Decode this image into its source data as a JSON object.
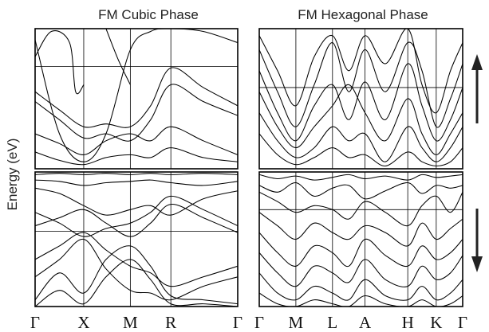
{
  "chart_data": [
    {
      "type": "line",
      "title": "FM Cubic Phase",
      "ylabel": "Energy (eV)",
      "kpath": [
        "Γ",
        "X",
        "M",
        "R",
        "Γ"
      ],
      "kpos": [
        0,
        0.24,
        0.47,
        0.67,
        1.0
      ],
      "panels": [
        {
          "name": "upper",
          "ylim": [
            0,
            1
          ],
          "hline": 0.73,
          "series": [
            {
              "x": [
                0,
                0.12,
                0.24,
                0.35,
                0.47,
                0.57,
                0.67,
                0.83,
                1.0
              ],
              "values": [
                0.92,
                0.25,
                0.05,
                0.25,
                0.85,
                0.98,
                1.0,
                0.98,
                0.9
              ]
            },
            {
              "x": [
                0,
                0.08,
                0.17,
                0.2,
                0.24
              ],
              "values": [
                0.8,
                0.98,
                0.9,
                0.55,
                0.6
              ]
            },
            {
              "x": [
                0.35,
                0.41,
                0.47
              ],
              "values": [
                1.0,
                0.78,
                0.6
              ]
            },
            {
              "x": [
                0,
                0.12,
                0.24,
                0.35,
                0.47,
                0.57,
                0.67,
                0.83,
                1.0
              ],
              "values": [
                0.55,
                0.42,
                0.3,
                0.32,
                0.3,
                0.45,
                0.72,
                0.58,
                0.45
              ]
            },
            {
              "x": [
                0,
                0.12,
                0.24,
                0.35,
                0.47,
                0.57,
                0.67,
                0.83,
                1.0
              ],
              "values": [
                0.48,
                0.35,
                0.22,
                0.25,
                0.2,
                0.35,
                0.6,
                0.48,
                0.38
              ]
            },
            {
              "x": [
                0,
                0.12,
                0.24,
                0.35,
                0.47,
                0.57,
                0.67,
                0.83,
                1.0
              ],
              "values": [
                0.25,
                0.18,
                0.1,
                0.2,
                0.25,
                0.2,
                0.3,
                0.2,
                0.1
              ]
            },
            {
              "x": [
                0,
                0.12,
                0.24,
                0.35,
                0.47,
                0.57,
                0.67,
                0.83,
                1.0
              ],
              "values": [
                0.12,
                0.06,
                0.03,
                0.08,
                0.1,
                0.08,
                0.15,
                0.08,
                0.05
              ]
            }
          ]
        },
        {
          "name": "lower",
          "ylim": [
            0,
            1
          ],
          "hline": 0.56,
          "series": [
            {
              "x": [
                0,
                0.12,
                0.24,
                0.35,
                0.47,
                0.57,
                0.67,
                0.83,
                1.0
              ],
              "values": [
                0.98,
                0.99,
                0.98,
                0.99,
                0.98,
                0.99,
                0.98,
                0.99,
                0.98
              ]
            },
            {
              "x": [
                0,
                0.12,
                0.24,
                0.35,
                0.47,
                0.57,
                0.67,
                0.83,
                1.0
              ],
              "values": [
                0.94,
                0.93,
                0.9,
                0.92,
                0.93,
                0.94,
                0.92,
                0.9,
                0.93
              ]
            },
            {
              "x": [
                0,
                0.12,
                0.24,
                0.35,
                0.47,
                0.57,
                0.67,
                0.83,
                1.0
              ],
              "values": [
                0.88,
                0.84,
                0.75,
                0.68,
                0.72,
                0.75,
                0.68,
                0.8,
                0.86
              ]
            },
            {
              "x": [
                0,
                0.12,
                0.24,
                0.35,
                0.47,
                0.57,
                0.67,
                0.83,
                1.0
              ],
              "values": [
                0.7,
                0.62,
                0.52,
                0.58,
                0.62,
                0.7,
                0.82,
                0.72,
                0.6
              ]
            },
            {
              "x": [
                0,
                0.12,
                0.24,
                0.35,
                0.47,
                0.57,
                0.67,
                0.83,
                1.0
              ],
              "values": [
                0.6,
                0.66,
                0.72,
                0.62,
                0.52,
                0.62,
                0.76,
                0.66,
                0.55
              ]
            },
            {
              "x": [
                0,
                0.12,
                0.24,
                0.35,
                0.47,
                0.57,
                0.67,
                0.83,
                1.0
              ],
              "values": [
                0.35,
                0.45,
                0.55,
                0.42,
                0.3,
                0.25,
                0.15,
                0.22,
                0.3
              ]
            },
            {
              "x": [
                0,
                0.12,
                0.24,
                0.35,
                0.47,
                0.57,
                0.67,
                0.83,
                1.0
              ],
              "values": [
                0.22,
                0.35,
                0.5,
                0.28,
                0.12,
                0.1,
                0.05,
                0.15,
                0.22
              ]
            },
            {
              "x": [
                0,
                0.12,
                0.24,
                0.35,
                0.47,
                0.57,
                0.67,
                0.83,
                1.0
              ],
              "values": [
                0.05,
                0.25,
                0.1,
                0.35,
                0.45,
                0.3,
                0.08,
                0.05,
                0.02
              ]
            },
            {
              "x": [
                0,
                0.12,
                0.24,
                0.35,
                0.47,
                0.57,
                0.67,
                0.83,
                1.0
              ],
              "values": [
                0.0,
                0.12,
                0.02,
                0.22,
                0.35,
                0.2,
                0.02,
                0.02,
                0.0
              ]
            }
          ]
        }
      ]
    },
    {
      "type": "line",
      "title": "FM Hexagonal Phase",
      "kpath": [
        "Γ",
        "M",
        "L",
        "A",
        "H",
        "K",
        "Γ"
      ],
      "kpos": [
        0,
        0.18,
        0.36,
        0.52,
        0.73,
        0.87,
        1.0
      ],
      "panels": [
        {
          "name": "upper",
          "ylim": [
            0,
            1
          ],
          "hline": 0.58,
          "series": [
            {
              "x": [
                0,
                0.09,
                0.18,
                0.27,
                0.36,
                0.44,
                0.52,
                0.62,
                0.73,
                0.8,
                0.87,
                0.94,
                1.0
              ],
              "values": [
                0.95,
                0.7,
                0.45,
                0.8,
                0.95,
                0.7,
                0.95,
                0.75,
                1.0,
                0.6,
                0.4,
                0.7,
                0.9
              ]
            },
            {
              "x": [
                0,
                0.09,
                0.18,
                0.27,
                0.36,
                0.44,
                0.52,
                0.62,
                0.73,
                0.8,
                0.87,
                0.94,
                1.0
              ],
              "values": [
                0.85,
                0.55,
                0.3,
                0.6,
                0.9,
                0.55,
                0.85,
                0.55,
                0.9,
                0.7,
                0.3,
                0.5,
                0.75
              ]
            },
            {
              "x": [
                0,
                0.09,
                0.18,
                0.27,
                0.36,
                0.44,
                0.52,
                0.62,
                0.73,
                0.8,
                0.87,
                0.94,
                1.0
              ],
              "values": [
                0.7,
                0.4,
                0.2,
                0.45,
                0.6,
                0.35,
                0.62,
                0.35,
                0.75,
                0.45,
                0.2,
                0.35,
                0.58
              ]
            },
            {
              "x": [
                0,
                0.09,
                0.18,
                0.27,
                0.36,
                0.44,
                0.52,
                0.62,
                0.73,
                0.8,
                0.87,
                0.94,
                1.0
              ],
              "values": [
                0.55,
                0.3,
                0.15,
                0.3,
                0.45,
                0.6,
                0.4,
                0.2,
                0.5,
                0.25,
                0.1,
                0.25,
                0.4
              ]
            },
            {
              "x": [
                0,
                0.09,
                0.18,
                0.27,
                0.36,
                0.44,
                0.52,
                0.62,
                0.73,
                0.8,
                0.87,
                0.94,
                1.0
              ],
              "values": [
                0.4,
                0.2,
                0.08,
                0.15,
                0.3,
                0.2,
                0.25,
                0.05,
                0.3,
                0.15,
                0.05,
                0.15,
                0.3
              ]
            },
            {
              "x": [
                0,
                0.09,
                0.18,
                0.27,
                0.36,
                0.44,
                0.52,
                0.62,
                0.73,
                0.8,
                0.87,
                0.94,
                1.0
              ],
              "values": [
                0.25,
                0.1,
                0.03,
                0.08,
                0.15,
                0.08,
                0.1,
                0.02,
                0.12,
                0.05,
                0.02,
                0.05,
                0.15
              ]
            }
          ]
        },
        {
          "name": "lower",
          "ylim": [
            0,
            1
          ],
          "hline": 0.72,
          "series": [
            {
              "x": [
                0,
                0.09,
                0.18,
                0.27,
                0.36,
                0.44,
                0.52,
                0.62,
                0.73,
                0.8,
                0.87,
                0.94,
                1.0
              ],
              "values": [
                0.98,
                0.95,
                0.97,
                0.94,
                0.96,
                0.98,
                0.95,
                0.97,
                0.94,
                0.98,
                0.96,
                0.97,
                0.98
              ]
            },
            {
              "x": [
                0,
                0.09,
                0.18,
                0.27,
                0.36,
                0.44,
                0.52,
                0.62,
                0.73,
                0.8,
                0.87,
                0.94,
                1.0
              ],
              "values": [
                0.9,
                0.85,
                0.92,
                0.82,
                0.88,
                0.9,
                0.8,
                0.86,
                0.92,
                0.84,
                0.9,
                0.88,
                0.9
              ]
            },
            {
              "x": [
                0,
                0.09,
                0.18,
                0.27,
                0.36,
                0.44,
                0.52,
                0.62,
                0.73,
                0.8,
                0.87,
                0.94,
                1.0
              ],
              "values": [
                0.85,
                0.78,
                0.7,
                0.75,
                0.72,
                0.65,
                0.78,
                0.7,
                0.6,
                0.75,
                0.82,
                0.7,
                0.85
              ]
            },
            {
              "x": [
                0,
                0.09,
                0.18,
                0.27,
                0.36,
                0.44,
                0.52,
                0.62,
                0.73,
                0.8,
                0.87,
                0.94,
                1.0
              ],
              "values": [
                0.7,
                0.6,
                0.5,
                0.62,
                0.55,
                0.5,
                0.6,
                0.55,
                0.45,
                0.62,
                0.5,
                0.58,
                0.65
              ]
            },
            {
              "x": [
                0,
                0.09,
                0.18,
                0.27,
                0.36,
                0.44,
                0.52,
                0.62,
                0.73,
                0.8,
                0.87,
                0.94,
                1.0
              ],
              "values": [
                0.55,
                0.4,
                0.3,
                0.45,
                0.4,
                0.3,
                0.5,
                0.38,
                0.3,
                0.45,
                0.35,
                0.4,
                0.5
              ]
            },
            {
              "x": [
                0,
                0.09,
                0.18,
                0.27,
                0.36,
                0.44,
                0.52,
                0.62,
                0.73,
                0.8,
                0.87,
                0.94,
                1.0
              ],
              "values": [
                0.4,
                0.25,
                0.15,
                0.3,
                0.25,
                0.18,
                0.35,
                0.2,
                0.15,
                0.3,
                0.2,
                0.25,
                0.38
              ]
            },
            {
              "x": [
                0,
                0.09,
                0.18,
                0.27,
                0.36,
                0.44,
                0.52,
                0.62,
                0.73,
                0.8,
                0.87,
                0.94,
                1.0
              ],
              "values": [
                0.25,
                0.1,
                0.05,
                0.15,
                0.1,
                0.05,
                0.2,
                0.08,
                0.05,
                0.15,
                0.05,
                0.1,
                0.2
              ]
            },
            {
              "x": [
                0,
                0.09,
                0.18,
                0.27,
                0.36,
                0.44,
                0.52,
                0.62,
                0.73,
                0.8,
                0.87,
                0.94,
                1.0
              ],
              "values": [
                0.1,
                0.02,
                0.0,
                0.05,
                0.02,
                0.0,
                0.08,
                0.02,
                0.0,
                0.05,
                0.0,
                0.02,
                0.08
              ]
            }
          ]
        }
      ]
    }
  ]
}
